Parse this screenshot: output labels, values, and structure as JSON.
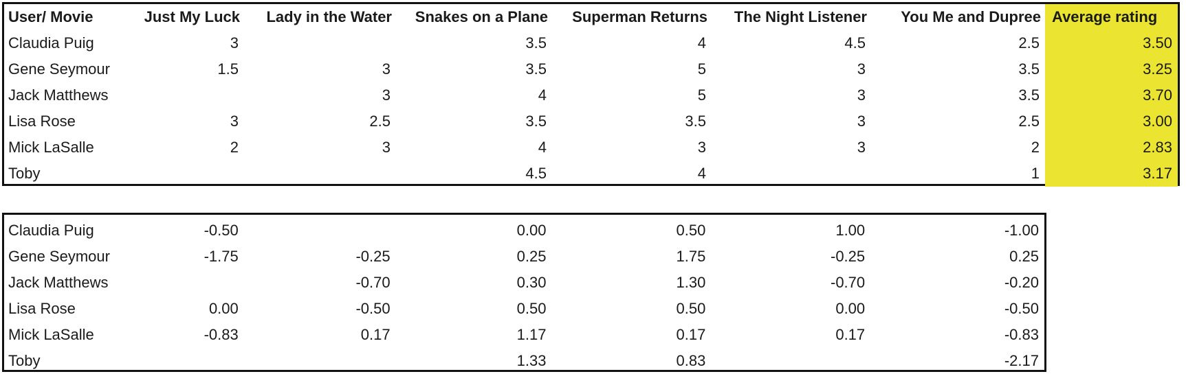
{
  "ratings_table": {
    "headers": [
      "User/ Movie",
      "Just My Luck",
      "Lady in the Water",
      "Snakes on a Plane",
      "Superman Returns",
      "The Night Listener",
      "You Me and Dupree",
      "Average rating"
    ],
    "rows": [
      {
        "name": "Claudia Puig",
        "values": [
          "3",
          "",
          "3.5",
          "4",
          "4.5",
          "2.5"
        ],
        "average": "3.50"
      },
      {
        "name": "Gene Seymour",
        "values": [
          "1.5",
          "3",
          "3.5",
          "5",
          "3",
          "3.5"
        ],
        "average": "3.25"
      },
      {
        "name": "Jack Matthews",
        "values": [
          "",
          "3",
          "4",
          "5",
          "3",
          "3.5"
        ],
        "average": "3.70"
      },
      {
        "name": "Lisa Rose",
        "values": [
          "3",
          "2.5",
          "3.5",
          "3.5",
          "3",
          "2.5"
        ],
        "average": "3.00"
      },
      {
        "name": "Mick LaSalle",
        "values": [
          "2",
          "3",
          "4",
          "3",
          "3",
          "2"
        ],
        "average": "2.83"
      },
      {
        "name": "Toby",
        "values": [
          "",
          "",
          "4.5",
          "4",
          "",
          "1"
        ],
        "average": "3.17"
      }
    ]
  },
  "deviation_table": {
    "rows": [
      {
        "name": "Claudia Puig",
        "values": [
          "-0.50",
          "",
          "0.00",
          "0.50",
          "1.00",
          "-1.00"
        ]
      },
      {
        "name": "Gene Seymour",
        "values": [
          "-1.75",
          "-0.25",
          "0.25",
          "1.75",
          "-0.25",
          "0.25"
        ]
      },
      {
        "name": "Jack Matthews",
        "values": [
          "",
          "-0.70",
          "0.30",
          "1.30",
          "-0.70",
          "-0.20"
        ]
      },
      {
        "name": "Lisa Rose",
        "values": [
          "0.00",
          "-0.50",
          "0.50",
          "0.50",
          "0.00",
          "-0.50"
        ]
      },
      {
        "name": "Mick LaSalle",
        "values": [
          "-0.83",
          "0.17",
          "1.17",
          "0.17",
          "0.17",
          "-0.83"
        ]
      },
      {
        "name": "Toby",
        "values": [
          "",
          "",
          "1.33",
          "0.83",
          "",
          "-2.17"
        ]
      }
    ]
  },
  "colors": {
    "average_highlight": "#ebe532",
    "border": "#111111"
  }
}
